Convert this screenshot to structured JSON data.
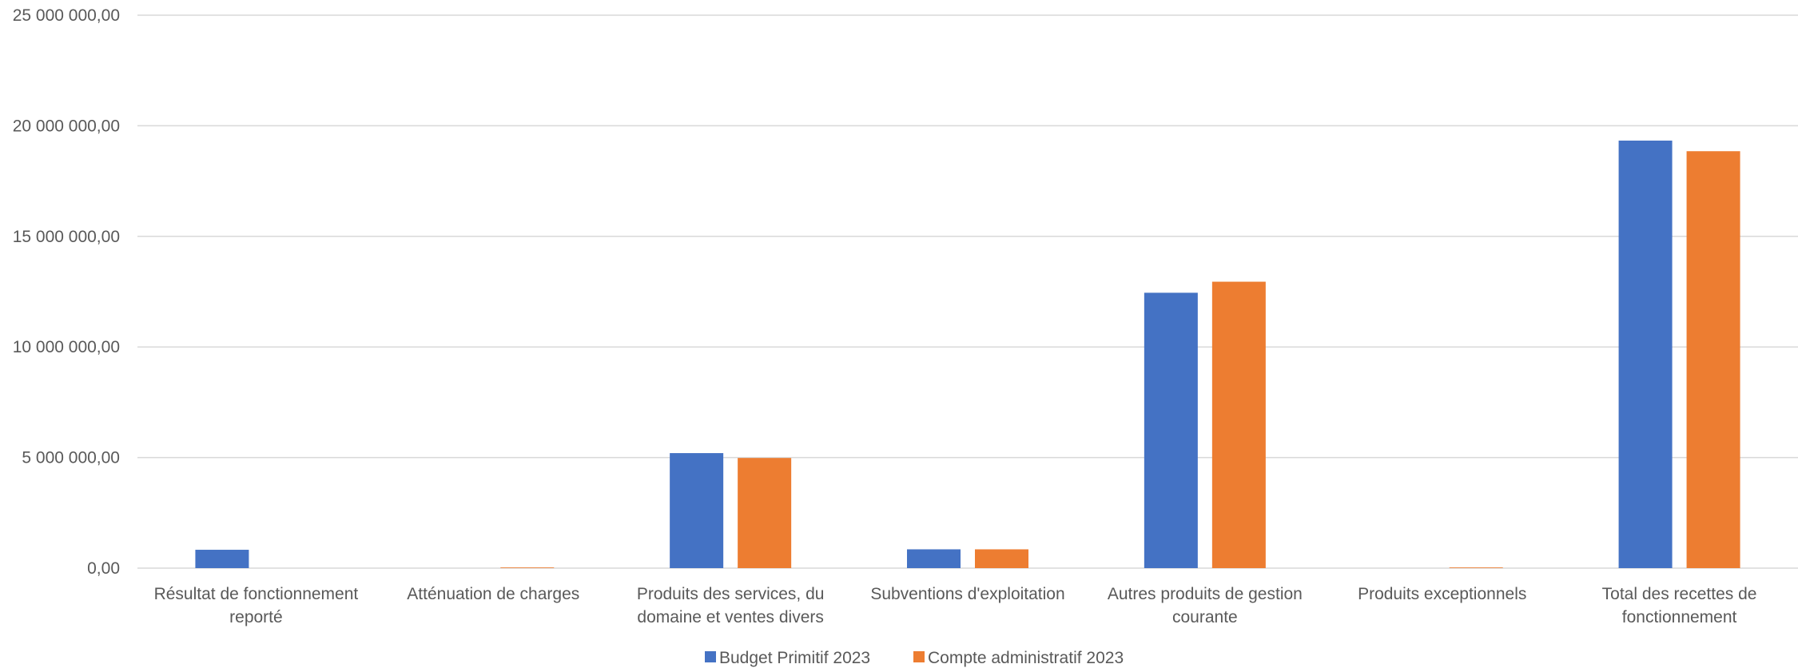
{
  "chart_data": {
    "type": "bar",
    "title": "",
    "xlabel": "",
    "ylabel": "",
    "ylim": [
      0,
      25000000
    ],
    "yticks": [
      0,
      5000000,
      10000000,
      15000000,
      20000000,
      25000000
    ],
    "ytick_labels": [
      "0,00",
      "5 000 000,00",
      "10 000 000,00",
      "15 000 000,00",
      "20 000 000,00",
      "25 000 000,00"
    ],
    "grid": true,
    "legend_position": "bottom",
    "categories": [
      [
        "Résultat de fonctionnement",
        "reporté"
      ],
      [
        "Atténuation de charges"
      ],
      [
        "Produits des services, du",
        "domaine et ventes divers"
      ],
      [
        "Subventions d'exploitation"
      ],
      [
        "Autres produits de gestion",
        "courante"
      ],
      [
        "Produits exceptionnels"
      ],
      [
        "Total des recettes de",
        "fonctionnement"
      ]
    ],
    "series": [
      {
        "name": "Budget Primitif 2023",
        "color": "#4472c4",
        "values": [
          830000,
          0,
          5200000,
          850000,
          12450000,
          0,
          19330000
        ]
      },
      {
        "name": "Compte administratif 2023",
        "color": "#ed7d31",
        "values": [
          0,
          30000,
          4980000,
          850000,
          12950000,
          30000,
          18850000
        ]
      }
    ]
  }
}
